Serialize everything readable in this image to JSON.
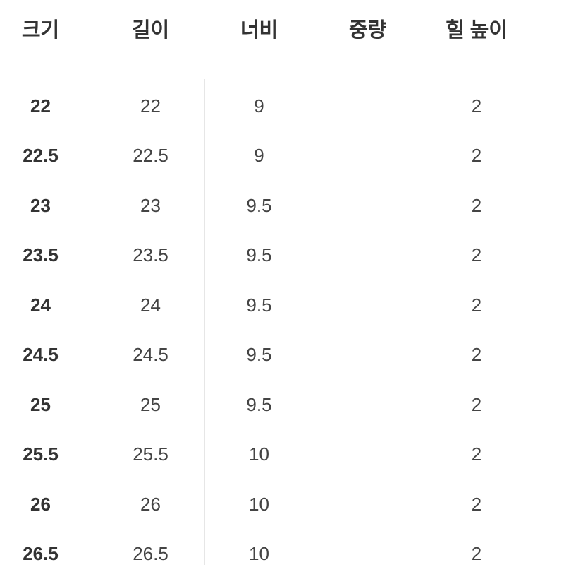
{
  "headers": [
    "크기",
    "길이",
    "너비",
    "중량",
    "힐 높이"
  ],
  "rows": [
    [
      "22",
      "22",
      "9",
      "",
      "2"
    ],
    [
      "22.5",
      "22.5",
      "9",
      "",
      "2"
    ],
    [
      "23",
      "23",
      "9.5",
      "",
      "2"
    ],
    [
      "23.5",
      "23.5",
      "9.5",
      "",
      "2"
    ],
    [
      "24",
      "24",
      "9.5",
      "",
      "2"
    ],
    [
      "24.5",
      "24.5",
      "9.5",
      "",
      "2"
    ],
    [
      "25",
      "25",
      "9.5",
      "",
      "2"
    ],
    [
      "25.5",
      "25.5",
      "10",
      "",
      "2"
    ],
    [
      "26",
      "26",
      "10",
      "",
      "2"
    ],
    [
      "26.5",
      "26.5",
      "10",
      "",
      "2"
    ]
  ]
}
